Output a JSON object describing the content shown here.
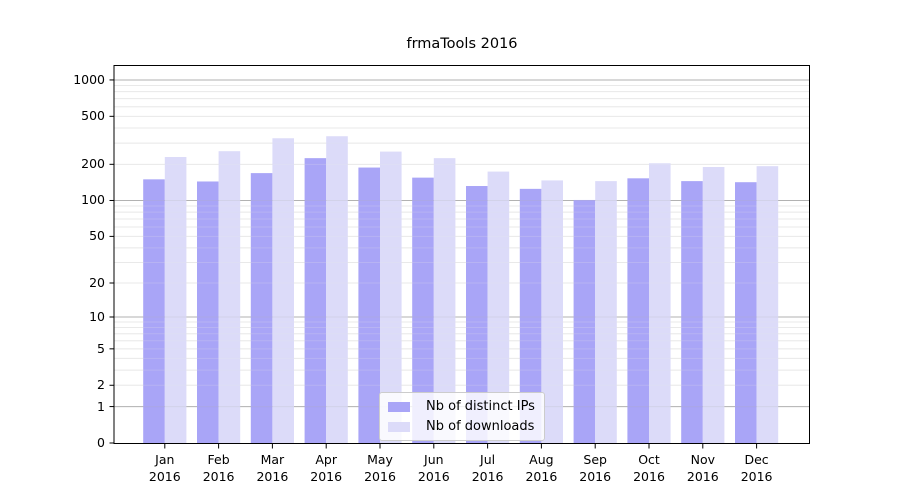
{
  "chart_data": {
    "type": "bar",
    "title": "frmaTools 2016",
    "categories": [
      "Jan",
      "Feb",
      "Mar",
      "Apr",
      "May",
      "Jun",
      "Jul",
      "Aug",
      "Sep",
      "Oct",
      "Nov",
      "Dec"
    ],
    "year": "2016",
    "series": [
      {
        "name": "Nb of distinct IPs",
        "color": "#a9a5f7",
        "values": [
          150,
          144,
          169,
          225,
          188,
          155,
          132,
          125,
          101,
          153,
          145,
          142
        ]
      },
      {
        "name": "Nb of downloads",
        "color": "#dcdbf9",
        "values": [
          230,
          257,
          329,
          342,
          255,
          225,
          174,
          147,
          145,
          204,
          190,
          193
        ]
      }
    ],
    "xlabel": "",
    "ylabel": "",
    "y_scale": "pseudo-log (log10 of 1+value)",
    "y_ticks": [
      0,
      1,
      2,
      5,
      10,
      20,
      50,
      100,
      200,
      500,
      1000
    ],
    "ylim": [
      0,
      1300
    ],
    "grid": true,
    "grid_major_values": [
      1,
      10,
      100,
      1000
    ],
    "grid_minor_values": [
      2,
      3,
      4,
      5,
      6,
      7,
      8,
      9,
      20,
      30,
      40,
      50,
      60,
      70,
      80,
      90,
      200,
      300,
      400,
      500,
      600,
      700,
      800,
      900
    ],
    "legend_position": "lower center"
  },
  "legend": {
    "items": [
      {
        "label": "Nb of distinct IPs",
        "color": "#a9a5f7"
      },
      {
        "label": "Nb of downloads",
        "color": "#dcdbf9"
      }
    ]
  },
  "colors": {
    "distinct_ips_bar": "#a9a5f7",
    "downloads_bar": "#dcdbf9",
    "grid_major": "#b2b2b2",
    "grid_minor": "#eaeaea",
    "axis": "#000000",
    "background": "#ffffff"
  }
}
